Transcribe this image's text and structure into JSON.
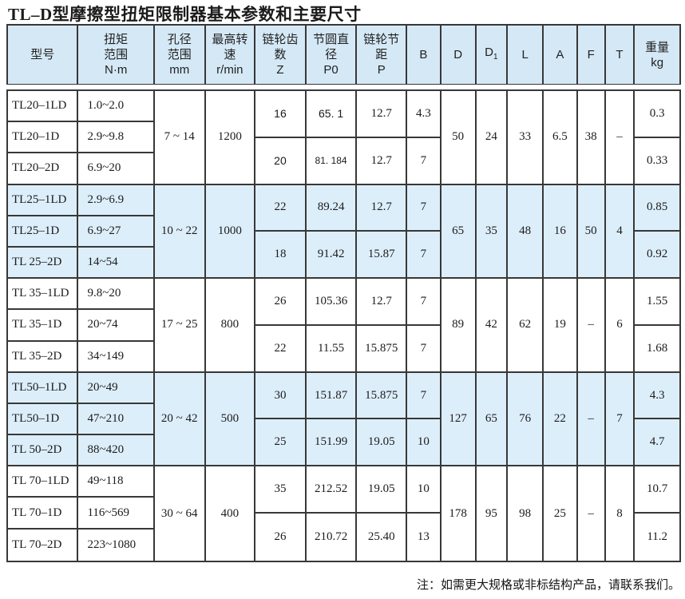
{
  "page": {
    "title": "TL–D型摩擦型扭矩限制器基本参数和主要尺寸",
    "note": "注：如需更大规格或非标结构产品，请联系我们。"
  },
  "colors": {
    "border": "#383838",
    "header_bg": "#d5e8f6",
    "shaded_row_bg": "#ddeefb",
    "text": "#1b1b1b"
  },
  "table": {
    "columns": [
      {
        "id": "model",
        "lines": [
          "型号"
        ]
      },
      {
        "id": "torque",
        "lines": [
          "扭矩",
          "范围",
          "N·m"
        ]
      },
      {
        "id": "bore",
        "lines": [
          "孔径",
          "范围",
          "mm"
        ]
      },
      {
        "id": "speed",
        "lines": [
          "最高转",
          "速",
          "r/min"
        ]
      },
      {
        "id": "teeth",
        "lines": [
          "链轮齿",
          "数",
          "Z"
        ]
      },
      {
        "id": "pitch-dia",
        "lines": [
          "节圆直",
          "径",
          "P0"
        ]
      },
      {
        "id": "chain-pitch",
        "lines": [
          "链轮节",
          "距",
          "P"
        ]
      },
      {
        "id": "b",
        "lines": [
          "B"
        ]
      },
      {
        "id": "d",
        "lines": [
          "D"
        ]
      },
      {
        "id": "d1",
        "lines": [
          "D"
        ],
        "sub": "1"
      },
      {
        "id": "l",
        "lines": [
          "L"
        ]
      },
      {
        "id": "a",
        "lines": [
          "A"
        ]
      },
      {
        "id": "f",
        "lines": [
          "F"
        ]
      },
      {
        "id": "t",
        "lines": [
          "T"
        ]
      },
      {
        "id": "weight",
        "lines": [
          "重量",
          "kg"
        ]
      }
    ],
    "groups": [
      {
        "shaded": false,
        "models": [
          "TL20–1LD",
          "TL20–1D",
          "TL20–2D"
        ],
        "torque": [
          "1.0~2.0",
          "2.9~9.8",
          "6.9~20"
        ],
        "bore": "7 ~ 14",
        "speed": "1200",
        "z": [
          {
            "v": "16",
            "s": "sans"
          },
          {
            "v": "20",
            "s": "sans"
          }
        ],
        "p0": [
          {
            "v": "65. 1",
            "s": "sans"
          },
          {
            "v": "81. 184",
            "s": "sans sm"
          }
        ],
        "p": [
          "12.7",
          "12.7"
        ],
        "b": [
          "4.3",
          "7"
        ],
        "d": "50",
        "d1": "24",
        "l": "33",
        "a": "6.5",
        "f": "38",
        "t": "–",
        "weight": [
          "0.3",
          "0.33"
        ]
      },
      {
        "shaded": true,
        "models": [
          "TL25–1LD",
          "TL25–1D",
          "TL 25–2D"
        ],
        "torque": [
          "2.9~6.9",
          "6.9~27",
          "14~54"
        ],
        "bore": "10 ~ 22",
        "speed": "1000",
        "z": [
          "22",
          "18"
        ],
        "p0": [
          "89.24",
          "91.42"
        ],
        "p": [
          "12.7",
          "15.87"
        ],
        "b": [
          "7",
          "7"
        ],
        "d": "65",
        "d1": "35",
        "l": "48",
        "a": "16",
        "f": "50",
        "t": "4",
        "weight": [
          "0.85",
          "0.92"
        ]
      },
      {
        "shaded": false,
        "models": [
          "TL 35–1LD",
          "TL 35–1D",
          "TL 35–2D"
        ],
        "torque": [
          "9.8~20",
          "20~74",
          "34~149"
        ],
        "bore": "17 ~ 25",
        "speed": "800",
        "z": [
          "26",
          "22"
        ],
        "p0": [
          "105.36",
          "11.55"
        ],
        "p": [
          "12.7",
          "15.875"
        ],
        "b": [
          "7",
          "7"
        ],
        "d": "89",
        "d1": "42",
        "l": "62",
        "a": "19",
        "f": "–",
        "t": "6",
        "weight": [
          "1.55",
          "1.68"
        ]
      },
      {
        "shaded": true,
        "models": [
          "TL50–1LD",
          "TL50–1D",
          "TL 50–2D"
        ],
        "torque": [
          "20~49",
          "47~210",
          "88~420"
        ],
        "bore": "20 ~ 42",
        "speed": "500",
        "z": [
          "30",
          "25"
        ],
        "p0": [
          "151.87",
          "151.99"
        ],
        "p": [
          "15.875",
          "19.05"
        ],
        "b": [
          "7",
          "10"
        ],
        "d": "127",
        "d1": "65",
        "l": "76",
        "a": "22",
        "f": "–",
        "t": "7",
        "weight": [
          "4.3",
          "4.7"
        ]
      },
      {
        "shaded": false,
        "models": [
          "TL 70–1LD",
          "TL 70–1D",
          "TL 70–2D"
        ],
        "torque": [
          "49~118",
          "116~569",
          "223~1080"
        ],
        "bore": "30 ~ 64",
        "speed": "400",
        "z": [
          "35",
          "26"
        ],
        "p0": [
          "212.52",
          "210.72"
        ],
        "p": [
          "19.05",
          "25.40"
        ],
        "b": [
          "10",
          "13"
        ],
        "d": "178",
        "d1": "95",
        "l": "98",
        "a": "25",
        "f": "–",
        "t": "8",
        "weight": [
          "10.7",
          "11.2"
        ]
      }
    ]
  }
}
